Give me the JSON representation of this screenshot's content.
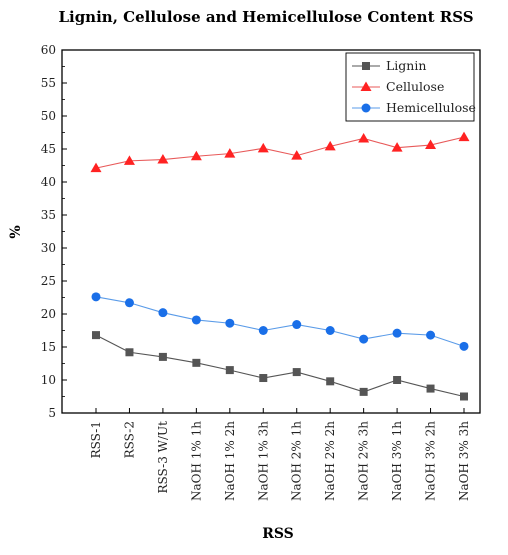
{
  "chart_data": {
    "type": "line",
    "title": "Lignin, Cellulose and Hemicellulose Content RSS",
    "xlabel": "RSS",
    "ylabel": "%",
    "ylim": [
      5,
      60
    ],
    "y_ticks": [
      5,
      10,
      15,
      20,
      25,
      30,
      35,
      40,
      45,
      50,
      55,
      60
    ],
    "grid": false,
    "legend_position": "top-right",
    "categories": [
      "RSS-1",
      "RSS-2",
      "RSS-3 W/Ut",
      "NaOH 1% 1h",
      "NaOH 1% 2h",
      "NaOH 1% 3h",
      "NaOH 2% 1h",
      "NaOH 2% 2h",
      "NaOH 2% 3h",
      "NaOH 3% 1h",
      "NaOH 3% 2h",
      "NaOH 3% 3h"
    ],
    "series": [
      {
        "name": "Lignin",
        "marker": "square",
        "color": "#555555",
        "marker_color": "#555555",
        "values": [
          16.8,
          14.2,
          13.5,
          12.6,
          11.5,
          10.3,
          11.2,
          9.8,
          8.2,
          10.0,
          8.7,
          7.5
        ]
      },
      {
        "name": "Cellulose",
        "marker": "triangle",
        "color": "#e85a5a",
        "marker_color": "#ff2222",
        "values": [
          42.1,
          43.2,
          43.4,
          43.9,
          44.3,
          45.1,
          44.0,
          45.4,
          46.6,
          45.2,
          45.6,
          46.8
        ]
      },
      {
        "name": "Hemicellulose",
        "marker": "circle",
        "color": "#5a9be8",
        "marker_color": "#1a6fe8",
        "values": [
          22.6,
          21.7,
          20.2,
          19.1,
          18.6,
          17.5,
          18.4,
          17.5,
          16.2,
          17.1,
          16.8,
          15.1
        ]
      }
    ]
  }
}
